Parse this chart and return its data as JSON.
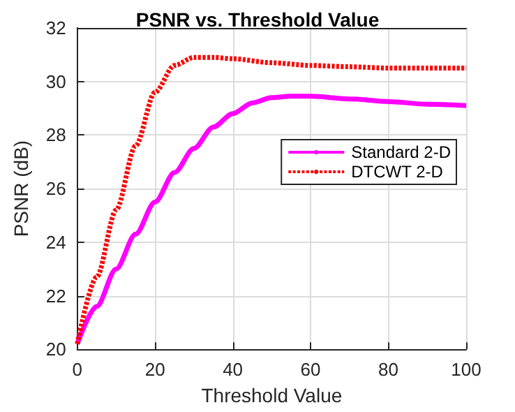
{
  "chart_data": {
    "type": "line",
    "title": "PSNR vs. Threshold Value",
    "xlabel": "Threshold Value",
    "ylabel": "PSNR (dB)",
    "xlim": [
      0,
      100
    ],
    "xticks": [
      0,
      20,
      40,
      60,
      80,
      100
    ],
    "ylim": [
      20,
      32
    ],
    "yticks": [
      20,
      22,
      24,
      26,
      28,
      30,
      32
    ],
    "grid": true,
    "legend": "right",
    "marker": "none",
    "series": [
      {
        "name": "Standard 2-D",
        "color": "#ff00ff",
        "line_style": "solid",
        "x": [
          0,
          5,
          10,
          15,
          20,
          25,
          30,
          35,
          40,
          45,
          50,
          55,
          60,
          70,
          80,
          90,
          100
        ],
        "values": [
          20.2,
          21.6,
          23.0,
          24.3,
          25.5,
          26.6,
          27.5,
          28.3,
          28.8,
          29.2,
          29.4,
          29.45,
          29.45,
          29.35,
          29.25,
          29.15,
          29.1
        ]
      },
      {
        "name": "DTCWT 2-D",
        "color": "#ff0000",
        "line_style": "dotted",
        "x": [
          0,
          5,
          10,
          15,
          20,
          25,
          30,
          35,
          40,
          50,
          60,
          70,
          80,
          90,
          100
        ],
        "values": [
          20.2,
          22.7,
          25.2,
          27.6,
          29.6,
          30.6,
          30.9,
          30.9,
          30.85,
          30.7,
          30.6,
          30.55,
          30.5,
          30.5,
          30.5
        ]
      }
    ]
  }
}
